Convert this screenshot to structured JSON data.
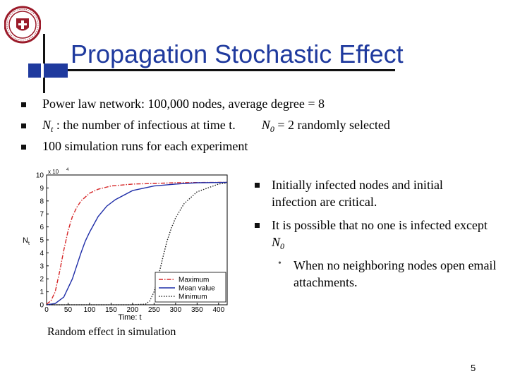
{
  "slide": {
    "title": "Propagation Stochastic Effect",
    "bullets": [
      {
        "text": "Power law network:  100,000 nodes,  average degree = 8"
      },
      {
        "pre": "N",
        "sub": "t",
        "mid": " : the number of infectious at time t.",
        "n0": "N",
        "n0sub": "0",
        "post": " = 2   randomly selected"
      },
      {
        "text": "100 simulation runs for each experiment"
      }
    ],
    "right_bullets": [
      {
        "text": "Initially infected nodes and initial infection are critical."
      },
      {
        "text": "It is possible that no one is infected except ",
        "tail_main": "N",
        "tail_sub": "0"
      }
    ],
    "sub_bullet": {
      "text": "When no neighboring nodes open email attachments."
    },
    "caption": "Random effect in simulation",
    "page_number": "5",
    "accent_color": "#1f3a9e",
    "seal_color": "#9b1b2a"
  },
  "chart_data": {
    "type": "line",
    "xlabel": "Time: t",
    "ylabel_main": "N",
    "ylabel_sub": "t",
    "y_multiplier": "x 10",
    "y_exponent": "4",
    "xlim": [
      0,
      420
    ],
    "ylim": [
      0,
      10
    ],
    "x_ticks": [
      0,
      50,
      100,
      150,
      200,
      250,
      300,
      350,
      400
    ],
    "y_ticks": [
      0,
      1,
      2,
      3,
      4,
      5,
      6,
      7,
      8,
      9,
      10
    ],
    "legend_position": "bottom-right",
    "series": [
      {
        "name": "Maximum",
        "color": "#d62728",
        "style": "dashdot",
        "x": [
          0,
          10,
          20,
          30,
          40,
          50,
          60,
          70,
          80,
          100,
          120,
          150,
          200,
          250,
          300,
          350,
          400,
          420
        ],
        "y": [
          0.05,
          0.3,
          1.0,
          2.5,
          4.2,
          5.7,
          6.8,
          7.5,
          8.0,
          8.6,
          8.9,
          9.15,
          9.3,
          9.35,
          9.4,
          9.42,
          9.43,
          9.43
        ]
      },
      {
        "name": "Mean value",
        "color": "#1f2ea8",
        "style": "solid",
        "x": [
          0,
          20,
          40,
          60,
          70,
          80,
          90,
          100,
          120,
          140,
          160,
          200,
          250,
          300,
          350,
          400,
          420
        ],
        "y": [
          0,
          0.1,
          0.6,
          2.0,
          3.0,
          4.0,
          4.9,
          5.6,
          6.8,
          7.6,
          8.1,
          8.8,
          9.15,
          9.3,
          9.4,
          9.42,
          9.43
        ]
      },
      {
        "name": "Minimum",
        "color": "#222222",
        "style": "dotted",
        "x": [
          0,
          200,
          230,
          240,
          250,
          260,
          270,
          280,
          290,
          300,
          320,
          350,
          400,
          420
        ],
        "y": [
          0,
          0,
          0.05,
          0.3,
          1.0,
          2.2,
          3.6,
          4.9,
          5.9,
          6.7,
          7.8,
          8.7,
          9.3,
          9.4
        ]
      }
    ]
  }
}
